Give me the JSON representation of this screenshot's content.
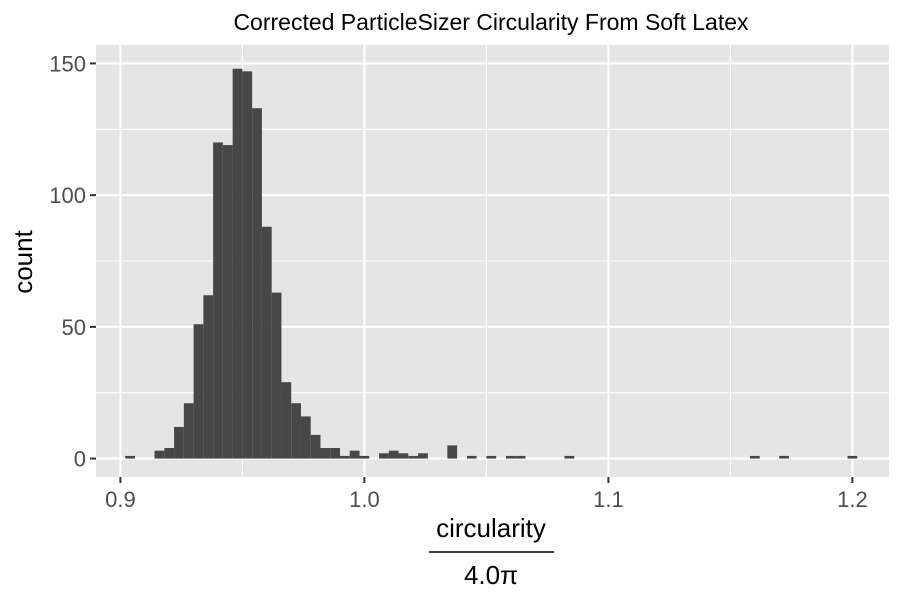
{
  "chart_data": {
    "type": "bar",
    "title": "Corrected ParticleSizer Circularity From Soft Latex",
    "xlabel_numerator": "circularity",
    "xlabel_denominator": "4.0π",
    "ylabel": "count",
    "xlim": [
      0.89,
      1.215
    ],
    "ylim": [
      -7,
      157
    ],
    "x_ticks": [
      0.9,
      1.0,
      1.1,
      1.2
    ],
    "x_tick_labels": [
      "0.9",
      "1.0",
      "1.1",
      "1.2"
    ],
    "y_ticks": [
      0,
      50,
      100,
      150
    ],
    "y_tick_labels": [
      "0",
      "50",
      "100",
      "150"
    ],
    "grid": true,
    "bin_width": 0.004,
    "bins": [
      {
        "x": 0.904,
        "count": 1
      },
      {
        "x": 0.916,
        "count": 3
      },
      {
        "x": 0.92,
        "count": 4
      },
      {
        "x": 0.924,
        "count": 12
      },
      {
        "x": 0.928,
        "count": 21
      },
      {
        "x": 0.932,
        "count": 51
      },
      {
        "x": 0.936,
        "count": 62
      },
      {
        "x": 0.94,
        "count": 120
      },
      {
        "x": 0.944,
        "count": 119
      },
      {
        "x": 0.948,
        "count": 148
      },
      {
        "x": 0.952,
        "count": 147
      },
      {
        "x": 0.956,
        "count": 133
      },
      {
        "x": 0.96,
        "count": 88
      },
      {
        "x": 0.964,
        "count": 63
      },
      {
        "x": 0.968,
        "count": 29
      },
      {
        "x": 0.972,
        "count": 21
      },
      {
        "x": 0.976,
        "count": 16
      },
      {
        "x": 0.98,
        "count": 9
      },
      {
        "x": 0.984,
        "count": 4
      },
      {
        "x": 0.988,
        "count": 4
      },
      {
        "x": 0.992,
        "count": 1
      },
      {
        "x": 0.996,
        "count": 3
      },
      {
        "x": 1.0,
        "count": 1
      },
      {
        "x": 1.008,
        "count": 2
      },
      {
        "x": 1.012,
        "count": 3
      },
      {
        "x": 1.016,
        "count": 2
      },
      {
        "x": 1.02,
        "count": 1
      },
      {
        "x": 1.024,
        "count": 2
      },
      {
        "x": 1.036,
        "count": 5
      },
      {
        "x": 1.044,
        "count": 1
      },
      {
        "x": 1.052,
        "count": 1
      },
      {
        "x": 1.06,
        "count": 1
      },
      {
        "x": 1.064,
        "count": 1
      },
      {
        "x": 1.084,
        "count": 1
      },
      {
        "x": 1.16,
        "count": 1
      },
      {
        "x": 1.172,
        "count": 1
      },
      {
        "x": 1.2,
        "count": 1
      }
    ],
    "colors": {
      "panel_background": "#e5e5e5",
      "bar_fill": "#474747",
      "grid": "#ffffff",
      "tick_label": "#4d4d4d"
    }
  }
}
